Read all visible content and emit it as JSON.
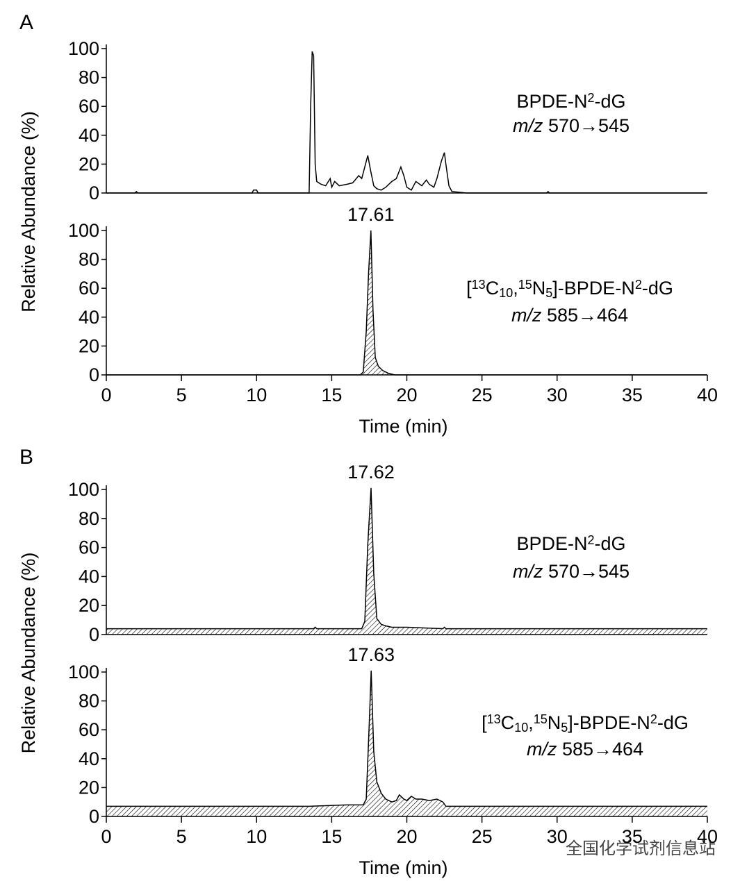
{
  "chart_data": [
    {
      "type": "line",
      "panel_label": "A",
      "y_label": "Relative Abundance (%)",
      "color": "#000000",
      "fill": "none",
      "xlim": [
        0,
        40
      ],
      "ylim": [
        0,
        100
      ],
      "yticks": [
        0,
        20,
        40,
        60,
        80,
        100
      ],
      "x": [
        0,
        1.9,
        2,
        2.1,
        9.7,
        9.8,
        10,
        10.1,
        13.5,
        13.6,
        13.7,
        13.8,
        13.9,
        14,
        14.3,
        14.6,
        14.9,
        15.0,
        15.2,
        15.5,
        16,
        16.4,
        16.8,
        17,
        17.2,
        17.4,
        17.6,
        17.8,
        18,
        18.3,
        18.6,
        19,
        19.3,
        19.6,
        19.8,
        20,
        20.3,
        20.6,
        21,
        21.3,
        21.5,
        21.8,
        22,
        22.3,
        22.5,
        22.6,
        22.8,
        23,
        24,
        29.3,
        29.4,
        29.5,
        40
      ],
      "values": [
        0,
        0,
        1,
        0,
        0,
        2,
        2,
        0,
        0,
        60,
        98,
        95,
        20,
        8,
        6,
        5,
        10,
        4,
        8,
        5,
        6,
        7,
        12,
        10,
        18,
        26,
        15,
        5,
        3,
        2,
        4,
        8,
        10,
        18,
        12,
        4,
        2,
        8,
        5,
        9,
        6,
        4,
        10,
        22,
        28,
        20,
        5,
        1,
        0,
        0,
        1,
        0,
        0
      ],
      "annotation": [
        [
          {
            "text": "BPDE-N"
          },
          {
            "text": "2",
            "shift": "sup"
          },
          {
            "text": "-dG"
          }
        ],
        [
          {
            "text": "m/z",
            "style": "italic"
          },
          {
            "text": " 570→545"
          }
        ]
      ]
    },
    {
      "type": "line",
      "peak_label": "17.61",
      "x_label": "Time (min)",
      "color": "#000000",
      "fill": "hatch",
      "xlim": [
        0,
        40
      ],
      "xticks": [
        0,
        5,
        10,
        15,
        20,
        25,
        30,
        35,
        40
      ],
      "ylim": [
        0,
        100
      ],
      "yticks": [
        0,
        20,
        40,
        60,
        80,
        100
      ],
      "x": [
        0,
        16.9,
        17.1,
        17.3,
        17.45,
        17.61,
        17.75,
        17.9,
        18.1,
        18.4,
        18.8,
        19.2,
        40
      ],
      "values": [
        0,
        0,
        2,
        30,
        70,
        100,
        45,
        12,
        6,
        3,
        1,
        0,
        0
      ],
      "annotation": [
        [
          {
            "text": "["
          },
          {
            "text": "13",
            "shift": "sup"
          },
          {
            "text": "C"
          },
          {
            "text": "10",
            "shift": "sub"
          },
          {
            "text": ","
          },
          {
            "text": "15",
            "shift": "sup"
          },
          {
            "text": "N"
          },
          {
            "text": "5",
            "shift": "sub"
          },
          {
            "text": "]-BPDE-N"
          },
          {
            "text": "2",
            "shift": "sup"
          },
          {
            "text": "-dG"
          }
        ],
        [
          {
            "text": "m/z",
            "style": "italic"
          },
          {
            "text": " 585→464"
          }
        ]
      ]
    },
    {
      "type": "line",
      "panel_label": "B",
      "peak_label": "17.62",
      "y_label": "Relative Abundance (%)",
      "color": "#000000",
      "fill": "hatch",
      "xlim": [
        0,
        40
      ],
      "ylim": [
        0,
        100
      ],
      "yticks": [
        0,
        20,
        40,
        60,
        80,
        100
      ],
      "x": [
        0,
        13.8,
        13.9,
        14,
        17.0,
        17.2,
        17.4,
        17.62,
        17.8,
        18,
        18.3,
        18.6,
        19,
        20,
        22.4,
        22.5,
        22.6,
        40
      ],
      "values": [
        4,
        4,
        5,
        4,
        4,
        9,
        62,
        101,
        42,
        11,
        7,
        6,
        5,
        5,
        4,
        5,
        4,
        4
      ],
      "annotation": [
        [
          {
            "text": "BPDE-N"
          },
          {
            "text": "2",
            "shift": "sup"
          },
          {
            "text": "-dG"
          }
        ],
        [
          {
            "text": "m/z",
            "style": "italic"
          },
          {
            "text": " 570→545"
          }
        ]
      ]
    },
    {
      "type": "line",
      "peak_label": "17.63",
      "x_label": "Time (min)",
      "color": "#000000",
      "fill": "hatch",
      "xlim": [
        0,
        40
      ],
      "xticks": [
        0,
        5,
        10,
        15,
        20,
        25,
        30,
        35,
        40
      ],
      "ylim": [
        0,
        100
      ],
      "yticks": [
        0,
        20,
        40,
        60,
        80,
        100
      ],
      "x": [
        0,
        13.5,
        16,
        17.1,
        17.3,
        17.5,
        17.63,
        17.8,
        18,
        18.3,
        18.6,
        19,
        19.3,
        19.5,
        19.8,
        20,
        20.3,
        20.6,
        21,
        21.5,
        22,
        22.4,
        22.6,
        40
      ],
      "values": [
        7,
        7,
        8,
        8,
        12,
        64,
        101,
        45,
        24,
        16,
        12,
        10,
        11,
        15,
        12,
        11,
        14,
        12,
        12,
        11,
        12,
        10,
        7,
        7
      ],
      "annotation": [
        [
          {
            "text": "["
          },
          {
            "text": "13",
            "shift": "sup"
          },
          {
            "text": "C"
          },
          {
            "text": "10",
            "shift": "sub"
          },
          {
            "text": ","
          },
          {
            "text": "15",
            "shift": "sup"
          },
          {
            "text": "N"
          },
          {
            "text": "5",
            "shift": "sub"
          },
          {
            "text": "]-BPDE-N"
          },
          {
            "text": "2",
            "shift": "sup"
          },
          {
            "text": "-dG"
          }
        ],
        [
          {
            "text": "m/z",
            "style": "italic"
          },
          {
            "text": " 585→464"
          }
        ]
      ]
    }
  ],
  "watermark": "全国化学试剂信息站"
}
